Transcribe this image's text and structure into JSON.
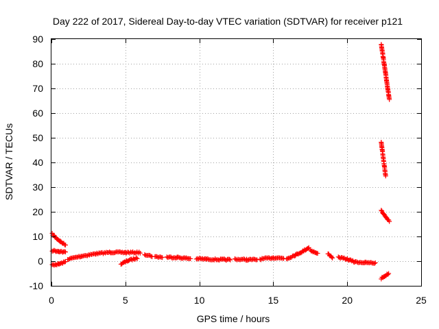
{
  "chart_data": {
    "type": "scatter",
    "title": "Day 222 of 2017, Sidereal Day-to-day VTEC variation (SDTVAR) for receiver p121",
    "xlabel": "GPS time / hours",
    "ylabel": "SDTVAR / TECUs",
    "xlim": [
      0,
      25
    ],
    "ylim": [
      -10,
      90
    ],
    "x_ticks": [
      "0",
      "5",
      "10",
      "15",
      "20",
      "25"
    ],
    "y_ticks": [
      "-10",
      "0",
      "10",
      "20",
      "30",
      "40",
      "50",
      "60",
      "70",
      "80",
      "90"
    ],
    "grid": true,
    "marker": "plus",
    "color": "#ff0000",
    "series": [
      {
        "segments": [
          [
            [
              0.05,
              11.0
            ],
            [
              0.3,
              9.5
            ],
            [
              0.6,
              8.0
            ],
            [
              0.95,
              6.5
            ]
          ],
          [
            [
              0.05,
              4.3
            ],
            [
              0.5,
              4.0
            ],
            [
              0.95,
              3.6
            ]
          ],
          [
            [
              0.05,
              -1.5
            ],
            [
              0.5,
              -1.2
            ],
            [
              0.95,
              -0.3
            ]
          ],
          [
            [
              1.1,
              0.8
            ],
            [
              2.0,
              2.0
            ],
            [
              3.0,
              3.0
            ],
            [
              4.0,
              3.6
            ],
            [
              5.0,
              3.5
            ],
            [
              6.0,
              3.5
            ]
          ],
          [
            [
              4.7,
              -1.2
            ],
            [
              5.2,
              0.3
            ],
            [
              5.8,
              1.2
            ]
          ],
          [
            [
              6.3,
              2.8
            ],
            [
              6.8,
              2.0
            ]
          ],
          [
            [
              7.0,
              1.8
            ],
            [
              7.5,
              1.6
            ]
          ],
          [
            [
              7.8,
              1.6
            ],
            [
              8.5,
              1.5
            ],
            [
              9.4,
              1.0
            ]
          ],
          [
            [
              9.8,
              1.0
            ],
            [
              10.5,
              0.8
            ],
            [
              11.5,
              0.6
            ],
            [
              12.1,
              0.6
            ]
          ],
          [
            [
              12.4,
              0.8
            ],
            [
              13.2,
              0.6
            ],
            [
              13.9,
              0.6
            ]
          ],
          [
            [
              14.1,
              0.8
            ],
            [
              15.0,
              1.4
            ],
            [
              15.7,
              1.2
            ]
          ],
          [
            [
              15.9,
              1.0
            ],
            [
              16.5,
              2.5
            ],
            [
              17.0,
              4.0
            ],
            [
              17.4,
              5.5
            ]
          ],
          [
            [
              17.5,
              4.5
            ],
            [
              18.0,
              3.0
            ]
          ],
          [
            [
              18.7,
              3.0
            ],
            [
              19.0,
              1.5
            ]
          ],
          [
            [
              19.4,
              1.5
            ],
            [
              20.0,
              0.8
            ],
            [
              20.5,
              -0.3
            ]
          ],
          [
            [
              20.5,
              -0.3
            ],
            [
              21.2,
              -0.6
            ],
            [
              21.9,
              -0.8
            ]
          ],
          [
            [
              22.3,
              -7.0
            ],
            [
              22.8,
              -5.0
            ]
          ],
          [
            [
              22.3,
              88.0
            ],
            [
              22.85,
              65.5
            ]
          ],
          [
            [
              22.3,
              48.0
            ],
            [
              22.6,
              34.5
            ]
          ],
          [
            [
              22.3,
              20.5
            ],
            [
              22.85,
              16.2
            ]
          ]
        ]
      }
    ]
  }
}
